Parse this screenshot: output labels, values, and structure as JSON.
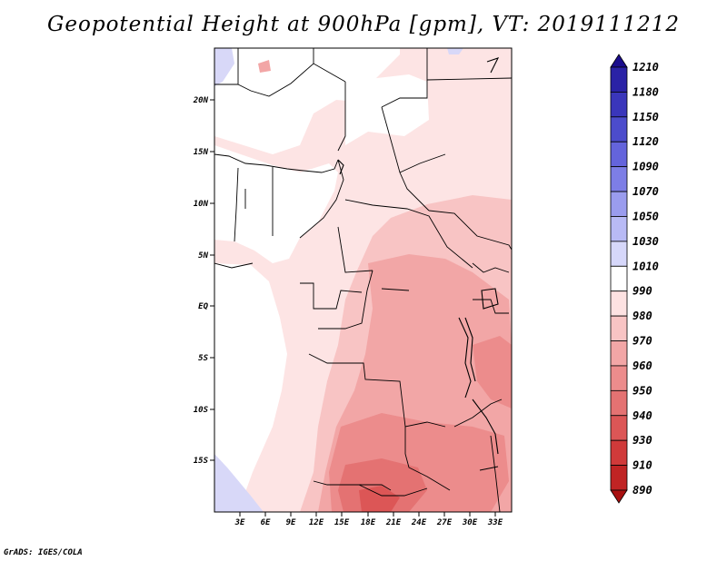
{
  "title": "Geopotential Height at 900hPa [gpm], VT: 2019111212",
  "credit": "GrADS: IGES/COLA",
  "map": {
    "lat_labels": [
      "20N",
      "15N",
      "10N",
      "5N",
      "EQ",
      "5S",
      "10S",
      "15S"
    ],
    "lon_labels": [
      "3E",
      "6E",
      "9E",
      "12E",
      "15E",
      "18E",
      "21E",
      "24E",
      "27E",
      "30E",
      "33E"
    ]
  },
  "colorbar": {
    "labels": [
      "1210",
      "1180",
      "1150",
      "1120",
      "1090",
      "1070",
      "1050",
      "1030",
      "1010",
      "990",
      "980",
      "970",
      "960",
      "950",
      "940",
      "930",
      "910",
      "890"
    ],
    "colors": [
      "#1a0d8c",
      "#2a22a6",
      "#3a36bb",
      "#4c4ccc",
      "#6464dc",
      "#7d7ee6",
      "#9a9cee",
      "#b8baf5",
      "#d6d7fa",
      "#ffffff",
      "#fde2e2",
      "#f8c4c4",
      "#f2a6a6",
      "#ec8c8c",
      "#e47272",
      "#dc5656",
      "#d03a3a",
      "#c02424",
      "#a81010"
    ]
  }
}
